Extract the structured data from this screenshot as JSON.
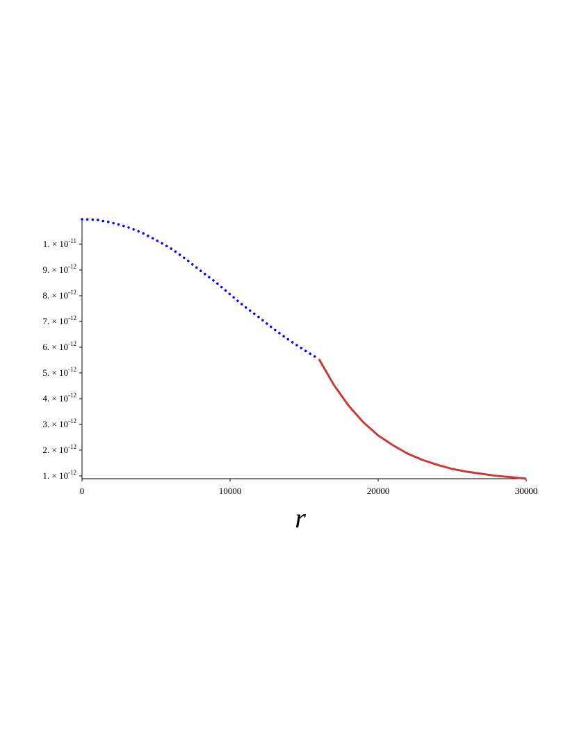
{
  "chart_data": {
    "type": "line",
    "x_label": "r",
    "x": [
      0,
      1000,
      2000,
      3000,
      4000,
      5000,
      6000,
      7000,
      8000,
      9000,
      10000,
      11000,
      12000,
      13000,
      14000,
      15000,
      16000,
      17000,
      18000,
      19000,
      20000,
      21000,
      22000,
      23000,
      24000,
      25000,
      26000,
      27000,
      28000,
      29000,
      30000
    ],
    "series": [
      {
        "color": "#0000ff",
        "style": "dotted",
        "values": [
          1.097e-11,
          1.095e-11,
          1.084e-11,
          1.068e-11,
          1.046e-11,
          1.016e-11,
          9.84e-12,
          9.43e-12,
          8.97e-12,
          8.54e-12,
          8.05e-12,
          7.57e-12,
          7.14e-12,
          6.68e-12,
          6.27e-12,
          5.89e-12,
          5.54e-12,
          null,
          null,
          null,
          null,
          null,
          null,
          null,
          null,
          null,
          null,
          null,
          null,
          null,
          null
        ]
      },
      {
        "color": "#c8393a",
        "style": "solid",
        "values": [
          null,
          null,
          null,
          null,
          null,
          null,
          null,
          null,
          null,
          null,
          null,
          null,
          null,
          null,
          null,
          null,
          5.54e-12,
          4.54e-12,
          3.73e-12,
          3.08e-12,
          2.57e-12,
          2.19e-12,
          1.86e-12,
          1.62e-12,
          1.43e-12,
          1.27e-12,
          1.16e-12,
          1.08e-12,
          1e-12,
          9.5e-13,
          8.9e-13
        ]
      }
    ],
    "xlim": [
      0,
      30000
    ],
    "xticks": [
      0,
      10000,
      20000,
      30000
    ],
    "ylim": [
      8.9e-13,
      1.1e-11
    ],
    "yticks": [
      {
        "value": 1e-12,
        "label": "1. × 10",
        "exponent": "-12"
      },
      {
        "value": 2e-12,
        "label": "2. × 10",
        "exponent": "-12"
      },
      {
        "value": 3e-12,
        "label": "3. × 10",
        "exponent": "-12"
      },
      {
        "value": 4e-12,
        "label": "4. × 10",
        "exponent": "-12"
      },
      {
        "value": 5e-12,
        "label": "5. × 10",
        "exponent": "-12"
      },
      {
        "value": 6e-12,
        "label": "6. × 10",
        "exponent": "-12"
      },
      {
        "value": 7e-12,
        "label": "7. × 10",
        "exponent": "-12"
      },
      {
        "value": 8e-12,
        "label": "8. × 10",
        "exponent": "-12"
      },
      {
        "value": 9e-12,
        "label": "9. × 10",
        "exponent": "-12"
      },
      {
        "value": 1e-11,
        "label": "1. × 10",
        "exponent": "-11"
      }
    ]
  }
}
